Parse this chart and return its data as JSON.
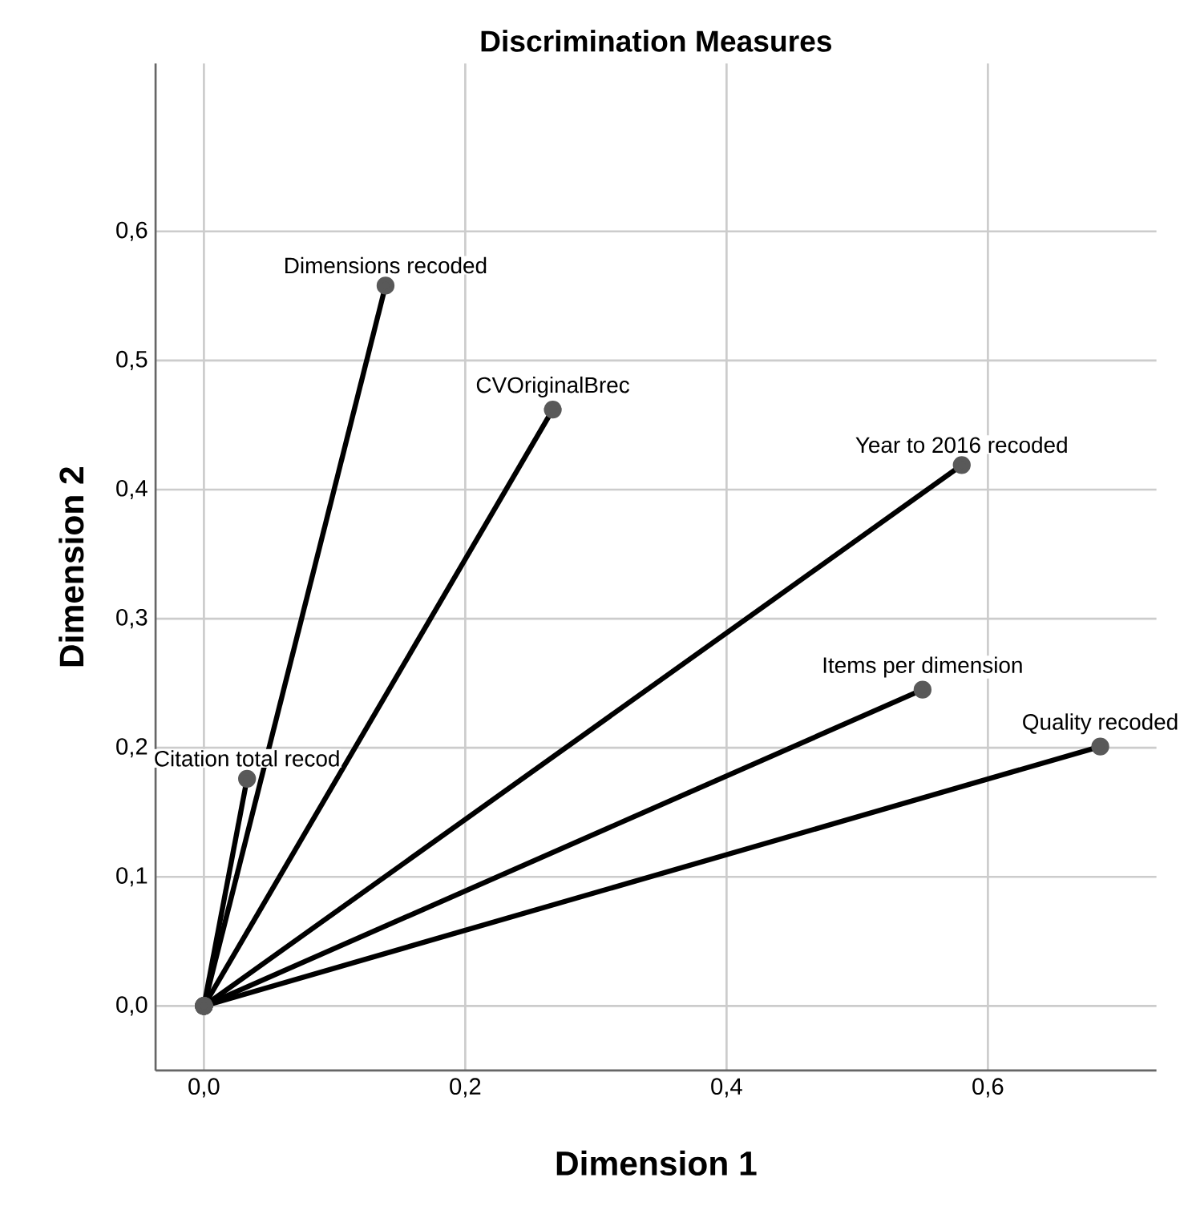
{
  "chart_data": {
    "type": "line",
    "title": "Discrimination Measures",
    "xlabel": "Dimension 1",
    "ylabel": "Dimension 2",
    "series": [
      {
        "x": [
          0,
          0.139
        ],
        "values": [
          0,
          0.558
        ],
        "color": "#000000"
      },
      {
        "x": [
          0,
          0.267
        ],
        "values": [
          0,
          0.462
        ],
        "color": "#000000"
      },
      {
        "x": [
          0,
          0.58
        ],
        "values": [
          0,
          0.419
        ],
        "color": "#000000"
      },
      {
        "x": [
          0,
          0.55
        ],
        "values": [
          0,
          0.245
        ],
        "color": "#000000"
      },
      {
        "x": [
          0,
          0.686
        ],
        "values": [
          0,
          0.201
        ],
        "color": "#000000"
      },
      {
        "x": [
          0,
          0.033
        ],
        "values": [
          0,
          0.176
        ],
        "color": "#000000"
      }
    ],
    "annotations": [
      {
        "text": "Dimensions recoded",
        "x": 0.139,
        "y": 0.558
      },
      {
        "text": "CVOriginalBrec",
        "x": 0.267,
        "y": 0.462
      },
      {
        "text": "Year to 2016 recoded",
        "x": 0.58,
        "y": 0.419
      },
      {
        "text": "Items per dimension",
        "x": 0.55,
        "y": 0.245
      },
      {
        "text": "Quality recoded",
        "x": 0.686,
        "y": 0.201
      },
      {
        "text": "Citation total recod",
        "x": 0.033,
        "y": 0.176
      }
    ],
    "xlim": [
      -0.037,
      0.729
    ],
    "ylim": [
      -0.05,
      0.73
    ],
    "xticks": [
      {
        "value": 0,
        "label": "0,0"
      },
      {
        "value": 0.2,
        "label": "0,2"
      },
      {
        "value": 0.4,
        "label": "0,4"
      },
      {
        "value": 0.6,
        "label": "0,6"
      }
    ],
    "yticks": [
      {
        "value": 0,
        "label": "0,0"
      },
      {
        "value": 0.1,
        "label": "0,1"
      },
      {
        "value": 0.2,
        "label": "0,2"
      },
      {
        "value": 0.3,
        "label": "0,3"
      },
      {
        "value": 0.4,
        "label": "0,4"
      },
      {
        "value": 0.5,
        "label": "0,5"
      },
      {
        "value": 0.6,
        "label": "0,6"
      }
    ],
    "grid": true,
    "marker": "circle",
    "line_style": "solid"
  }
}
